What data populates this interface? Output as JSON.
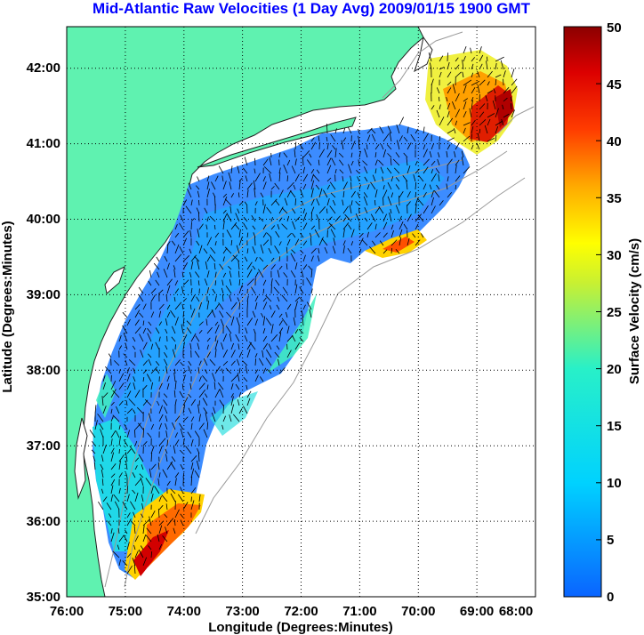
{
  "title": "Mid-Atlantic Raw Velocities (1 Day Avg) 2009/01/15 1900 GMT",
  "title_color": "#0000ff",
  "map": {
    "xlabel": "Longitude (Degrees:Minutes)",
    "ylabel": "Latitude (Degrees:Minutes)",
    "x_range_degW": [
      76,
      68
    ],
    "y_range_degN": [
      35,
      42.55
    ],
    "x_ticks": [
      {
        "value": 76,
        "label": "76:00"
      },
      {
        "value": 75,
        "label": "75:00"
      },
      {
        "value": 74,
        "label": "74:00"
      },
      {
        "value": 73,
        "label": "73:00"
      },
      {
        "value": 72,
        "label": "72:00"
      },
      {
        "value": 71,
        "label": "71:00"
      },
      {
        "value": 70,
        "label": "70:00"
      },
      {
        "value": 69,
        "label": "69:00"
      },
      {
        "value": 68,
        "label": "68:00"
      }
    ],
    "y_ticks": [
      {
        "value": 35,
        "label": "35:00"
      },
      {
        "value": 36,
        "label": "36:00"
      },
      {
        "value": 37,
        "label": "37:00"
      },
      {
        "value": 38,
        "label": "38:00"
      },
      {
        "value": 39,
        "label": "39:00"
      },
      {
        "value": 40,
        "label": "40:00"
      },
      {
        "value": 41,
        "label": "41:00"
      },
      {
        "value": 42,
        "label": "42:00"
      }
    ],
    "grid": "dotted",
    "land_color": "#5ff2b0"
  },
  "colorbar": {
    "label": "Surface Velocity (cm/s)",
    "min": 0,
    "max": 50,
    "ticks": [
      "0",
      "5",
      "10",
      "15",
      "20",
      "25",
      "30",
      "35",
      "40",
      "45",
      "50"
    ],
    "colormap": "jet"
  }
}
